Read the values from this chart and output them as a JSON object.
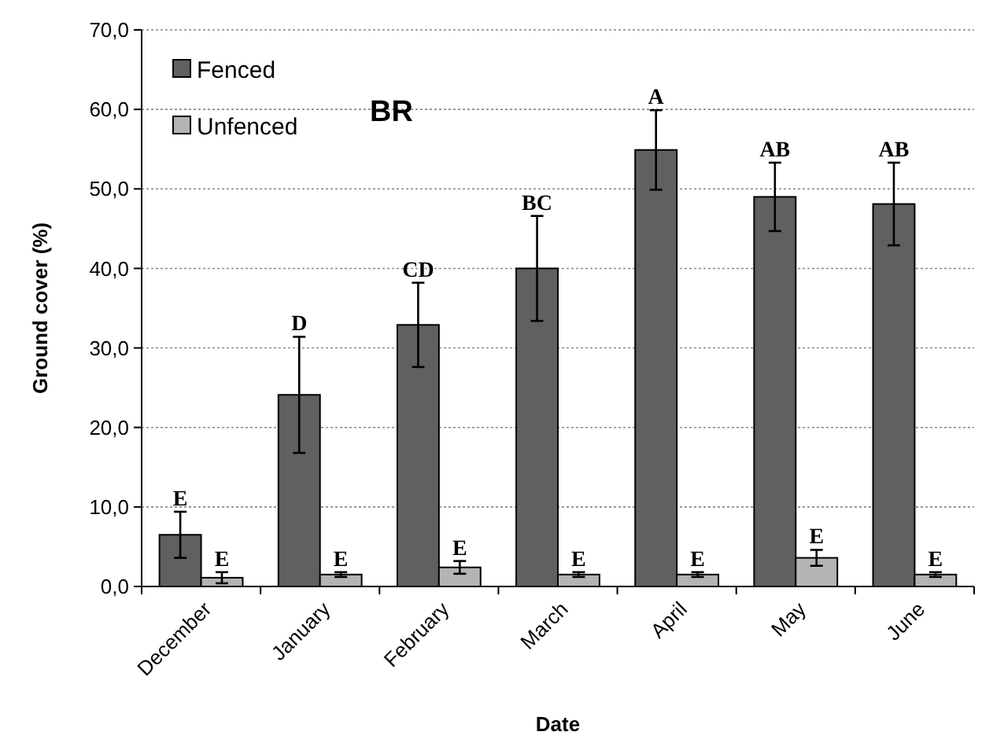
{
  "chart_data": {
    "type": "bar",
    "xlabel": "Date",
    "ylabel": "Ground cover (%)",
    "annotations": [
      "BR"
    ],
    "categories": [
      "December",
      "January",
      "February",
      "March",
      "April",
      "May",
      "June"
    ],
    "series": [
      {
        "name": "Fenced",
        "color": "#606060",
        "values": [
          6.5,
          24.1,
          32.9,
          40.0,
          54.9,
          49.0,
          48.1
        ],
        "errors": [
          2.9,
          7.3,
          5.3,
          6.6,
          5.0,
          4.3,
          5.2
        ],
        "value_labels": [
          "E",
          "D",
          "CD",
          "BC",
          "A",
          "AB",
          "AB"
        ]
      },
      {
        "name": "Unfenced",
        "color": "#b4b4b4",
        "values": [
          1.1,
          1.5,
          2.4,
          1.5,
          1.5,
          3.6,
          1.5
        ],
        "errors": [
          0.7,
          0.3,
          0.8,
          0.3,
          0.3,
          1.0,
          0.3
        ],
        "value_labels": [
          "E",
          "E",
          "E",
          "E",
          "E",
          "E",
          "E"
        ]
      }
    ],
    "ylim": [
      0,
      70
    ],
    "yticks": [
      {
        "value": 0,
        "label": "0,0"
      },
      {
        "value": 10,
        "label": "10,0"
      },
      {
        "value": 20,
        "label": "20,0"
      },
      {
        "value": 30,
        "label": "30,0"
      },
      {
        "value": 40,
        "label": "40,0"
      },
      {
        "value": 50,
        "label": "50,0"
      },
      {
        "value": 60,
        "label": "60,0"
      },
      {
        "value": 70,
        "label": "70,0"
      }
    ],
    "grid": "y",
    "legend": "top left"
  }
}
